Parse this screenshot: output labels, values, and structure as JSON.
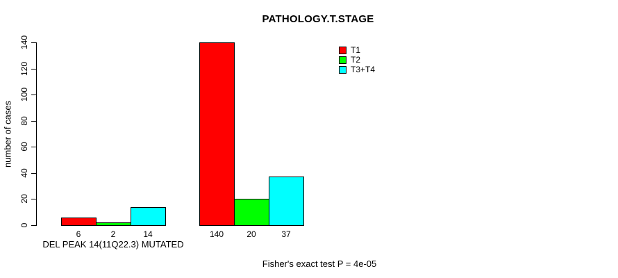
{
  "title": "PATHOLOGY.T.STAGE",
  "footer": "Fisher's exact test P = 4e-05",
  "colors": {
    "background": "#ffffff",
    "axis": "#000000",
    "bar_border": "#000000",
    "t1_red": "#ff0000",
    "t2_green": "#00ff00",
    "t3t4_cyan": "#00ffff"
  },
  "chart_data": {
    "type": "bar",
    "title": "PATHOLOGY.T.STAGE",
    "xlabel": "",
    "ylabel": "number of cases",
    "ylim": [
      0,
      140
    ],
    "yticks": [
      0,
      20,
      40,
      60,
      80,
      100,
      120,
      140
    ],
    "grid": false,
    "legend_position": "top-right-inside",
    "legend": [
      {
        "label": "T1",
        "color": "#ff0000"
      },
      {
        "label": "T2",
        "color": "#00ff00"
      },
      {
        "label": "T3+T4",
        "color": "#00ffff"
      }
    ],
    "series_names": [
      "T1",
      "T2",
      "T3+T4"
    ],
    "bar_colors": [
      "#ff0000",
      "#00ff00",
      "#00ffff"
    ],
    "groups": [
      {
        "label": "DEL PEAK 14(11Q22.3) MUTATED",
        "values": [
          6,
          2,
          14
        ]
      },
      {
        "label": "",
        "values": [
          140,
          20,
          37
        ]
      }
    ],
    "bar_value_labels": [
      [
        "6",
        "2",
        "14"
      ],
      [
        "140",
        "20",
        "37"
      ]
    ],
    "annotation": "Fisher's exact test P = 4e-05"
  }
}
